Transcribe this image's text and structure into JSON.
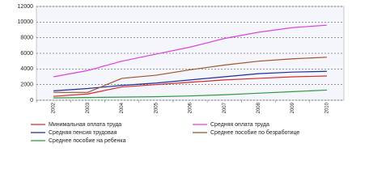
{
  "chart_data": {
    "type": "line",
    "categories": [
      "2002",
      "2003",
      "2004",
      "2005",
      "2006",
      "2007",
      "2008",
      "2009",
      "2010"
    ],
    "series": [
      {
        "name": "Минимальная оплата труда",
        "color": "#d62b2b",
        "values": [
          500,
          800,
          1700,
          2000,
          2300,
          2600,
          2800,
          3000,
          3100
        ]
      },
      {
        "name": "Средняя оплата труда",
        "color": "#e040e0",
        "values": [
          3000,
          3800,
          5000,
          5900,
          6800,
          7900,
          8700,
          9300,
          9600
        ]
      },
      {
        "name": "Средняя пенсия трудовая",
        "color": "#1f2f9a",
        "values": [
          1200,
          1500,
          1900,
          2200,
          2600,
          3000,
          3400,
          3600,
          3700
        ]
      },
      {
        "name": "Среднее пособие по безработице",
        "color": "#a0522d",
        "values": [
          1000,
          1000,
          2800,
          3200,
          3900,
          4500,
          5000,
          5300,
          5500
        ]
      },
      {
        "name": "Среднее пособие на ребенка",
        "color": "#2e9a3a",
        "values": [
          300,
          350,
          400,
          450,
          550,
          700,
          900,
          1100,
          1300
        ]
      }
    ],
    "ylim": [
      0,
      12000
    ],
    "yticks": [
      0,
      2000,
      4000,
      6000,
      8000,
      10000,
      12000
    ],
    "grid": true
  }
}
